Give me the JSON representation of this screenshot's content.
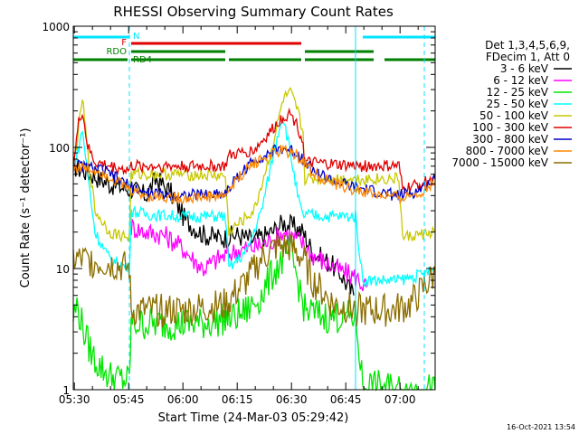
{
  "chart_data": {
    "type": "line",
    "title": "RHESSI Observing Summary Count Rates",
    "xlabel": "Start Time (24-Mar-03 05:29:42)",
    "ylabel": "Count Rate (s⁻¹ detector⁻¹)",
    "yscale": "log",
    "ylim": [
      1,
      1000
    ],
    "xlim_minutes": [
      0,
      100
    ],
    "x_ticks": [
      {
        "t": 0.3,
        "label": "05:30"
      },
      {
        "t": 15.3,
        "label": "05:45"
      },
      {
        "t": 30.3,
        "label": "06:00"
      },
      {
        "t": 45.3,
        "label": "06:15"
      },
      {
        "t": 60.3,
        "label": "06:30"
      },
      {
        "t": 75.3,
        "label": "06:45"
      },
      {
        "t": 90.3,
        "label": "07:00"
      }
    ],
    "y_ticks": [
      {
        "v": 1,
        "label": "1"
      },
      {
        "v": 10,
        "label": "10"
      },
      {
        "v": 100,
        "label": "100"
      },
      {
        "v": 1000,
        "label": "1000"
      }
    ],
    "legend_header": [
      "Det 1,3,4,5,6,9,",
      "FDecim 1, Att 0"
    ],
    "legend_position": "right",
    "footer_date": "16-Oct-2021 13:54",
    "flag_bars": [
      {
        "label": "N",
        "color": "#00e5ff",
        "segments": [
          [
            0,
            15.5
          ],
          [
            80,
            100
          ]
        ],
        "level": 0
      },
      {
        "label": "F",
        "color": "#e00000",
        "segments": [
          [
            16,
            63
          ]
        ],
        "level": 1
      },
      {
        "label": "RDO",
        "color": "#008000",
        "segments": [
          [
            16,
            42
          ],
          [
            64,
            83
          ]
        ],
        "level": 2
      },
      {
        "label": "RD4",
        "color": "#008000",
        "segments": [
          [
            0,
            15
          ],
          [
            16,
            42
          ],
          [
            43,
            63
          ],
          [
            64,
            83
          ],
          [
            86,
            100
          ]
        ],
        "level": 3
      }
    ],
    "dashed_vlines": [
      15.5,
      97
    ],
    "solid_vlines": [
      78
    ],
    "series": [
      {
        "name": "3 - 6 keV",
        "color": "#000000",
        "x": [
          0,
          5,
          10,
          15.5,
          16,
          20,
          23,
          27,
          31,
          36,
          40,
          42,
          45,
          50,
          55,
          58,
          61,
          63.5,
          66,
          69,
          71,
          74,
          76,
          77.5
        ],
        "y": [
          70,
          60,
          50,
          45,
          45,
          40,
          55,
          42,
          25,
          19,
          18,
          18,
          19,
          17,
          20,
          24,
          22,
          20,
          14,
          12,
          11,
          9,
          7,
          6
        ]
      },
      {
        "name": "6 - 12 keV",
        "color": "#ff00ff",
        "x": [
          16,
          20,
          25,
          30,
          33,
          36,
          40,
          45,
          50,
          55,
          58,
          61,
          63.5,
          66,
          70,
          74,
          78,
          81
        ],
        "y": [
          22,
          20,
          19,
          15,
          12,
          10,
          12,
          14,
          15,
          17,
          20,
          18,
          16,
          13,
          11,
          9.5,
          8.5,
          7
        ]
      },
      {
        "name": "12 - 25 keV",
        "color": "#00e600",
        "x": [
          0,
          1,
          3,
          5,
          7,
          10,
          14,
          15.5,
          16,
          25,
          35,
          45,
          48,
          52,
          55,
          58,
          60,
          62,
          64,
          70,
          78,
          80,
          90,
          97,
          100
        ],
        "y": [
          4,
          5,
          3,
          2,
          1.6,
          1.3,
          1.2,
          1.2,
          3.5,
          3.5,
          3.5,
          4,
          4.5,
          6,
          9,
          12,
          14,
          8,
          4.5,
          4,
          4,
          1.1,
          1,
          1,
          1
        ]
      },
      {
        "name": "25 - 50 keV",
        "color": "#00ffff",
        "x": [
          0,
          1.5,
          2.5,
          4,
          6,
          10,
          15.5,
          16,
          20,
          30,
          42,
          43,
          48,
          52,
          55,
          57,
          58,
          60,
          62,
          63.5,
          64,
          70,
          78,
          80,
          90,
          97,
          100
        ],
        "y": [
          70,
          100,
          140,
          60,
          20,
          12,
          10,
          30,
          28,
          27,
          27,
          10,
          14,
          30,
          80,
          150,
          180,
          90,
          40,
          26,
          28,
          27,
          27,
          8,
          8,
          9,
          10
        ]
      },
      {
        "name": "50 - 100 keV",
        "color": "#c8c800",
        "x": [
          0,
          1.5,
          2.5,
          4,
          6,
          10,
          15.5,
          16,
          30,
          42,
          43,
          50,
          55,
          58,
          60,
          62,
          63.5,
          64,
          78,
          90,
          91,
          100
        ],
        "y": [
          70,
          140,
          260,
          90,
          30,
          20,
          18,
          60,
          60,
          58,
          20,
          30,
          100,
          250,
          280,
          200,
          130,
          55,
          55,
          55,
          18,
          20
        ]
      },
      {
        "name": "100 - 300 keV",
        "color": "#e00000",
        "x": [
          0,
          1.5,
          2.5,
          4,
          6,
          10,
          15.5,
          16,
          30,
          42,
          43,
          50,
          55,
          58,
          60,
          62,
          63.5,
          64,
          78,
          90,
          91,
          100
        ],
        "y": [
          70,
          160,
          200,
          100,
          75,
          70,
          65,
          70,
          70,
          70,
          85,
          95,
          140,
          180,
          190,
          150,
          110,
          75,
          70,
          70,
          45,
          55
        ]
      },
      {
        "name": "300 - 800 keV",
        "color": "#0000cc",
        "x": [
          0,
          8,
          15.5,
          20,
          30,
          42,
          46,
          50,
          55,
          58,
          61,
          63.5,
          66,
          72,
          80,
          85,
          90,
          95,
          100
        ],
        "y": [
          72,
          65,
          48,
          42,
          40,
          42,
          60,
          78,
          92,
          98,
          92,
          82,
          65,
          52,
          45,
          42,
          40,
          43,
          55
        ]
      },
      {
        "name": "800 - 7000 keV",
        "color": "#ff8800",
        "x": [
          0,
          8,
          15.5,
          20,
          30,
          42,
          46,
          50,
          55,
          58,
          61,
          63.5,
          66,
          72,
          80,
          85,
          90,
          95,
          100
        ],
        "y": [
          70,
          63,
          45,
          40,
          38,
          40,
          58,
          75,
          88,
          95,
          88,
          78,
          62,
          50,
          43,
          40,
          38,
          41,
          52
        ]
      },
      {
        "name": "7000 - 15000 keV",
        "color": "#8c6e00",
        "x": [
          0,
          10,
          15.5,
          16,
          30,
          42,
          48,
          52,
          56,
          60,
          63.5,
          66,
          72,
          80,
          88,
          93,
          97,
          100
        ],
        "y": [
          12,
          11,
          10,
          4.5,
          4.5,
          5,
          8,
          12,
          15,
          15,
          12,
          8,
          5,
          4.5,
          4.5,
          5,
          7,
          9
        ]
      }
    ]
  }
}
